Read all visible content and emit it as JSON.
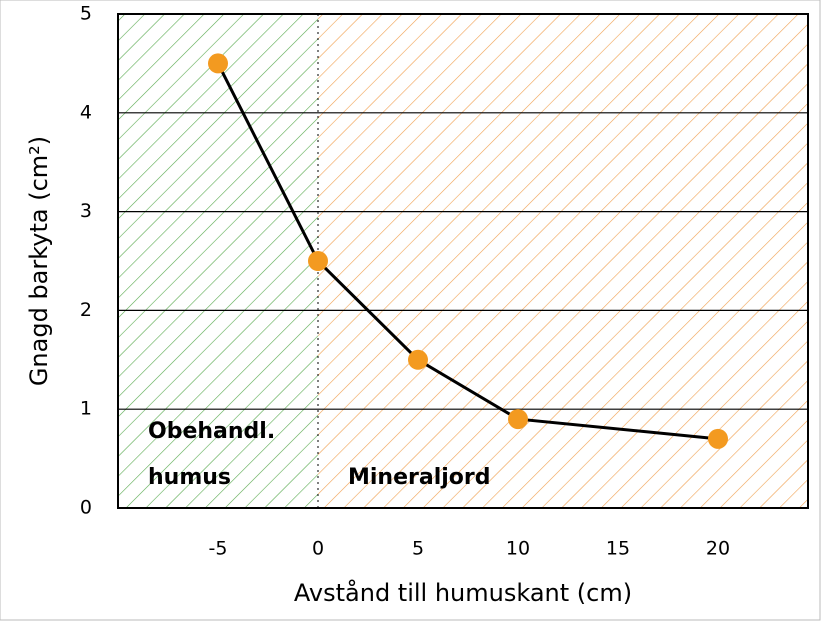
{
  "chart_data": {
    "type": "line",
    "x_label": "Avstånd till humuskant (cm)",
    "y_label": "Gnagd barkyta (cm²)",
    "x": [
      -5,
      0,
      5,
      10,
      20
    ],
    "series": [
      {
        "name": null,
        "color": "#f39a20",
        "line_color": "#000000",
        "values": [
          4.5,
          2.5,
          1.5,
          0.9,
          0.7
        ]
      }
    ],
    "xlim": [
      -10,
      24.5
    ],
    "ylim": [
      0,
      5
    ],
    "xticks": [
      -5,
      0,
      5,
      10,
      15,
      20
    ],
    "yticks": [
      0,
      1,
      2,
      3,
      4,
      5
    ],
    "grid": true,
    "regions": [
      {
        "label": [
          "Obehandl.",
          "humus"
        ],
        "from": -10,
        "to": 0,
        "color": "#5aaa50"
      },
      {
        "label": [
          "Mineraljord"
        ],
        "from": 0,
        "to": 24.5,
        "color": "#f0a050"
      }
    ]
  }
}
